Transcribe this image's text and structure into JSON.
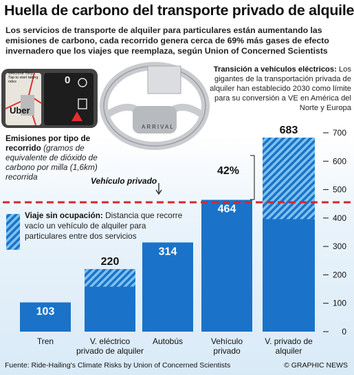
{
  "header": {
    "title": "Huella de carbono del transporte privado de alquiler",
    "subtitle": "Los servicios de transporte de alquiler para particulares están aumentando las emisiones de carbono, cada recorrido genera cerca de 69% más gases de efecto invernadero que los viajes que reemplaza, según Union of Concerned Scientists"
  },
  "phone": {
    "greeting": "Welcome Tony. Tap to start taking rides",
    "brand": "Uber",
    "gear": "0"
  },
  "vehicle_brand": "ARRIVAL",
  "transition_note": {
    "heading": "Transición a vehículos  eléctricos:",
    "body": "Los gigantes de la transportación privada de alquiler han establecido 2030 como límite para su conversión a VE en América del Norte y Europa"
  },
  "emissions_note": {
    "heading": "Emisiones por tipo de recorrido",
    "body": "(gramos de equivalente de dióxido de carbono por milla (1,6km) recorrida"
  },
  "reference": {
    "label": "Vehículo privado",
    "percent": "42%"
  },
  "empty_trip_note": {
    "heading": "Viaje sin ocupación:",
    "body": "Distancia que recorre vacío un vehículo de alquiler para particulares entre dos servicios"
  },
  "colors": {
    "bar": "#1a73c9",
    "stripe_light": "#7ec2ee",
    "reference_line": "#d7262c"
  },
  "chart_data": {
    "type": "bar",
    "title": "Emisiones por tipo de recorrido",
    "ylabel": "gramos de equivalente de dióxido de carbono por milla (1,6km) recorrida",
    "categories": [
      "Tren",
      "V. eléctrico privado de alquiler",
      "Autobús",
      "Vehículo privado",
      "V. privado de alquiler"
    ],
    "category_lines": [
      [
        "Tren"
      ],
      [
        "V. eléctrico",
        "privado de alquiler"
      ],
      [
        "Autobús"
      ],
      [
        "Vehículo",
        "privado"
      ],
      [
        "V. privado de",
        "alquiler"
      ]
    ],
    "values": [
      103,
      220,
      314,
      464,
      683
    ],
    "value_labels": [
      "103",
      "220",
      "314",
      "464",
      "683"
    ],
    "empty_trip_share": [
      0,
      0.28,
      0,
      0,
      0.42
    ],
    "series": [
      {
        "name": "Viaje sin ocupación",
        "values": [
          0,
          62,
          0,
          0,
          287
        ]
      }
    ],
    "reference_value": 464,
    "ylim": [
      0,
      700
    ],
    "yticks": [
      "0",
      "100",
      "200",
      "300",
      "400",
      "500",
      "600",
      "700"
    ],
    "ytick_values": [
      0,
      100,
      200,
      300,
      400,
      500,
      600,
      700
    ],
    "grid": false,
    "legend": "left"
  },
  "footer": {
    "source": "Fuente: Ride-Hailing's Climate Risks by Union of Concerned Scientists",
    "copyright": "© GRAPHIC NEWS"
  }
}
